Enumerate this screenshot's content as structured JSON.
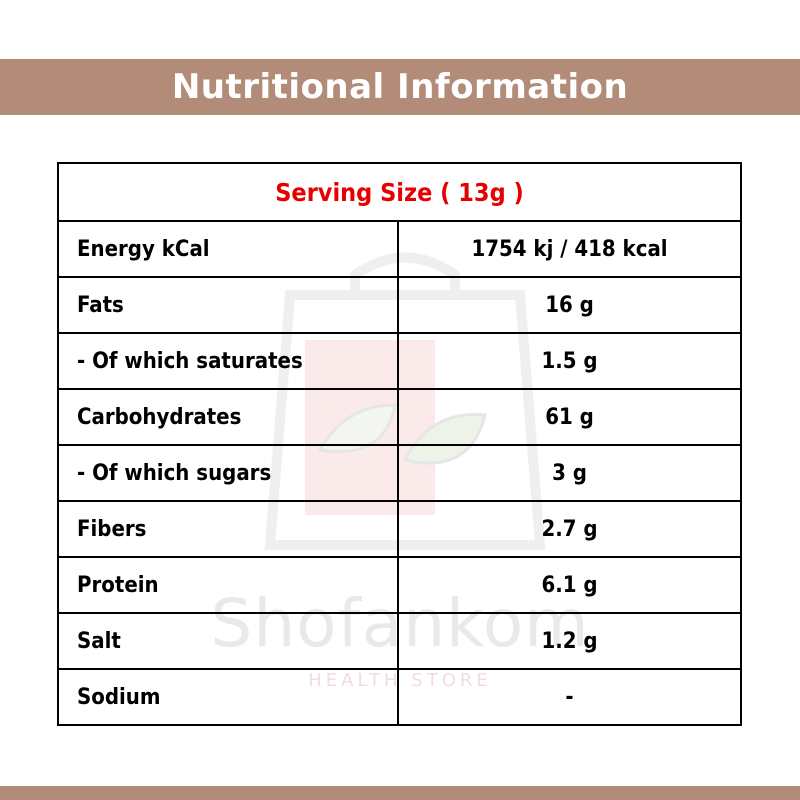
{
  "header": {
    "title": "Nutritional Information"
  },
  "table": {
    "serving_size": "Serving Size ( 13g )",
    "rows": [
      {
        "label": "Energy kCal",
        "value": "1754 kj / 418 kcal"
      },
      {
        "label": "Fats",
        "value": "16 g"
      },
      {
        "label": "- Of which saturates",
        "value": "1.5 g"
      },
      {
        "label": "Carbohydrates",
        "value": "61 g"
      },
      {
        "label": "- Of which sugars",
        "value": "3 g"
      },
      {
        "label": "Fibers",
        "value": "2.7 g"
      },
      {
        "label": "Protein",
        "value": "6.1 g"
      },
      {
        "label": "Salt",
        "value": "1.2 g"
      },
      {
        "label": "Sodium",
        "value": "-"
      }
    ]
  },
  "watermark": {
    "brand": "Shofankom",
    "tagline": "HEALTH STORE"
  },
  "colors": {
    "band": "#b28c79",
    "serving_text": "#e60000",
    "border": "#000000"
  }
}
